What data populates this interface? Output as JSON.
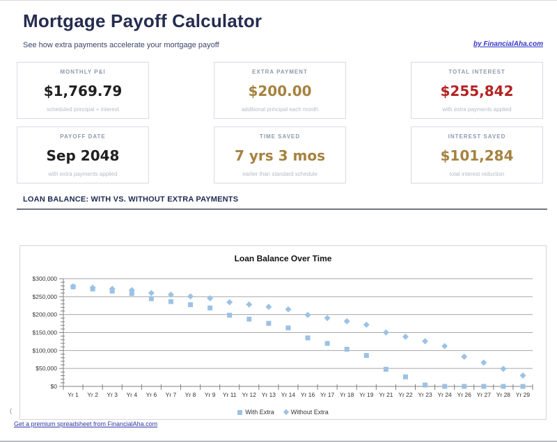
{
  "header": {
    "title": "Mortgage Payoff Calculator",
    "subtitle": "See how extra payments accelerate your mortgage payoff",
    "credit_link": "by FinancialAha.com"
  },
  "cards": [
    {
      "label": "MONTHLY P&I",
      "value": "$1,769.79",
      "sub": "scheduled principal + interest",
      "value_color": "#1f1f1f"
    },
    {
      "label": "EXTRA PAYMENT",
      "value": "$200.00",
      "sub": "additional principal each month",
      "value_color": "#a5823f"
    },
    {
      "label": "TOTAL INTEREST",
      "value": "$255,842",
      "sub": "with extra payments applied",
      "value_color": "#b42222"
    },
    {
      "label": "PAYOFF DATE",
      "value": "Sep 2048",
      "sub": "with extra payments applied",
      "value_color": "#1f1f1f"
    },
    {
      "label": "TIME SAVED",
      "value": "7 yrs 3 mos",
      "sub": "earlier than standard schedule",
      "value_color": "#a5823f"
    },
    {
      "label": "INTEREST SAVED",
      "value": "$101,284",
      "sub": "total interest reduction",
      "value_color": "#a5823f"
    }
  ],
  "section": {
    "title": "LOAN BALANCE: WITH VS. WITHOUT EXTRA PAYMENTS"
  },
  "chart_data": {
    "type": "scatter",
    "title": "Loan Balance Over Time",
    "categories": [
      "Yr 1",
      "Yr 2",
      "Yr 3",
      "Yr 4",
      "Yr 6",
      "Yr 7",
      "Yr 8",
      "Yr 9",
      "Yr 11",
      "Yr 12",
      "Yr 13",
      "Yr 14",
      "Yr 16",
      "Yr 17",
      "Yr 18",
      "Yr 19",
      "Yr 21",
      "Yr 22",
      "Yr 23",
      "Yr 24",
      "Yr 26",
      "Yr 27",
      "Yr 28",
      "Yr 29"
    ],
    "series": [
      {
        "name": "With Extra",
        "marker": "square",
        "values": [
          277200,
          271500,
          265300,
          258700,
          244200,
          236200,
          227600,
          218500,
          198400,
          187300,
          175500,
          162900,
          135100,
          119800,
          103500,
          86100,
          47700,
          26500,
          3900,
          0,
          0,
          0,
          0,
          0
        ]
      },
      {
        "name": "Without Extra",
        "marker": "diamond",
        "values": [
          278500,
          275200,
          271800,
          268100,
          260000,
          255500,
          250700,
          245600,
          234400,
          228200,
          221600,
          214600,
          199100,
          190500,
          181400,
          171700,
          150200,
          138400,
          125800,
          112300,
          82700,
          66300,
          48900,
          30300
        ]
      }
    ],
    "ylim": [
      0,
      300000
    ],
    "ytick_step": 50000,
    "ytick_minor_step": 10000,
    "ytick_labels": [
      "$0",
      "$50,000",
      "$100,000",
      "$150,000",
      "$200,000",
      "$250,000",
      "$300,000"
    ],
    "grid": true,
    "legend_position": "bottom",
    "marker_color": "#9cc2e5",
    "gridline_color": "#a6a6a6",
    "axis_color": "#7f7f7f"
  },
  "footer": {
    "stray_char": "(",
    "link": "Get a premium spreadsheet from FinancialAha.com"
  }
}
